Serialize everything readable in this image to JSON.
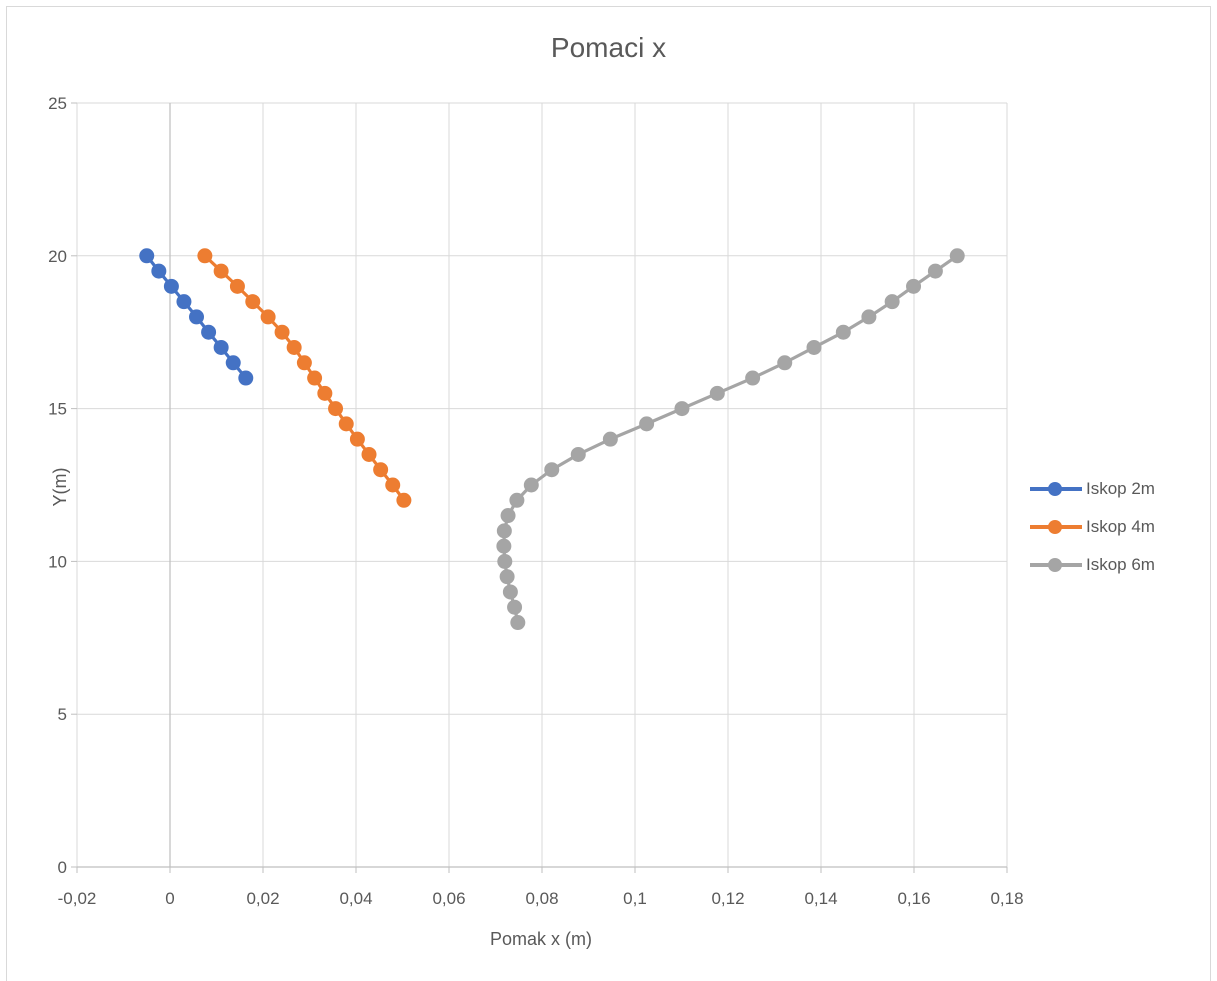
{
  "chart_data": {
    "type": "scatter",
    "title": "Pomaci x",
    "xlabel": "Pomak x (m)",
    "ylabel": "Y(m)",
    "xlim": [
      -0.02,
      0.18
    ],
    "ylim": [
      0,
      25
    ],
    "x_ticks": [
      "-0,02",
      "0",
      "0,02",
      "0,04",
      "0,06",
      "0,08",
      "0,1",
      "0,12",
      "0,14",
      "0,16",
      "0,18"
    ],
    "y_ticks": [
      "0",
      "5",
      "10",
      "15",
      "20",
      "25"
    ],
    "grid": true,
    "legend_position": "right",
    "series": [
      {
        "name": "Iskop 2m",
        "color": "#4472c4",
        "x": [
          -0.005,
          -0.0024,
          0.0003,
          0.003,
          0.0057,
          0.0083,
          0.011,
          0.0136,
          0.0163
        ],
        "y": [
          20,
          19.5,
          19,
          18.5,
          18,
          17.5,
          17,
          16.5,
          16
        ]
      },
      {
        "name": "Iskop 4m",
        "color": "#ed7d31",
        "x": [
          0.0075,
          0.011,
          0.0145,
          0.0178,
          0.0211,
          0.0241,
          0.0267,
          0.0289,
          0.0311,
          0.0333,
          0.0356,
          0.0379,
          0.0403,
          0.0428,
          0.0453,
          0.0479,
          0.0503
        ],
        "y": [
          20,
          19.5,
          19,
          18.5,
          18,
          17.5,
          17,
          16.5,
          16,
          15.5,
          15,
          14.5,
          14,
          13.5,
          13,
          12.5,
          12
        ]
      },
      {
        "name": "Iskop 6m",
        "color": "#a5a5a5",
        "x": [
          0.1693,
          0.1646,
          0.1599,
          0.1553,
          0.1503,
          0.1448,
          0.1385,
          0.1322,
          0.1253,
          0.1177,
          0.1101,
          0.1025,
          0.0947,
          0.0878,
          0.0821,
          0.0777,
          0.0746,
          0.0727,
          0.0719,
          0.0718,
          0.072,
          0.0725,
          0.0732,
          0.0741,
          0.0748
        ],
        "y": [
          20,
          19.5,
          19,
          18.5,
          18,
          17.5,
          17,
          16.5,
          16,
          15.5,
          15,
          14.5,
          14,
          13.5,
          13,
          12.5,
          12,
          11.5,
          11,
          10.5,
          10,
          9.5,
          9,
          8.5,
          8
        ]
      }
    ]
  }
}
